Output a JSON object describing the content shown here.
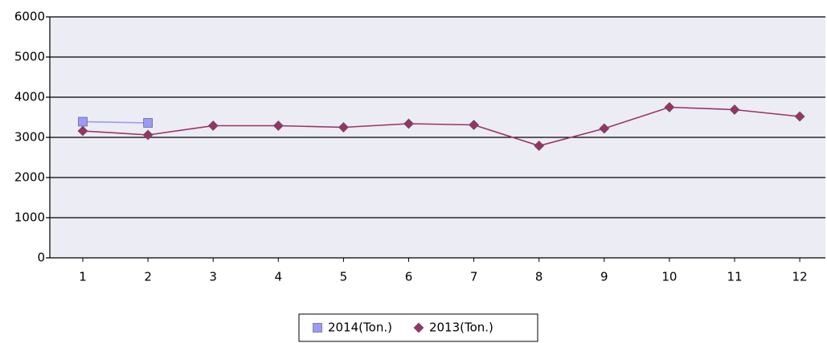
{
  "chart_data": {
    "type": "line",
    "categories": [
      "1",
      "2",
      "3",
      "4",
      "5",
      "6",
      "7",
      "8",
      "9",
      "10",
      "11",
      "12"
    ],
    "series": [
      {
        "name": "2014(Ton.)",
        "color": "#9999ff",
        "marker": "square",
        "values": [
          3390,
          3360,
          null,
          null,
          null,
          null,
          null,
          null,
          null,
          null,
          null,
          null
        ]
      },
      {
        "name": "2013(Ton.)",
        "color": "#993366",
        "marker": "diamond",
        "values": [
          3160,
          3060,
          3290,
          3290,
          3250,
          3340,
          3310,
          2790,
          3220,
          3750,
          3690,
          3520
        ]
      }
    ],
    "ylim": [
      0,
      6000
    ],
    "yticks": [
      0,
      1000,
      2000,
      3000,
      4000,
      5000,
      6000
    ],
    "grid": true,
    "legend": "bottom"
  }
}
